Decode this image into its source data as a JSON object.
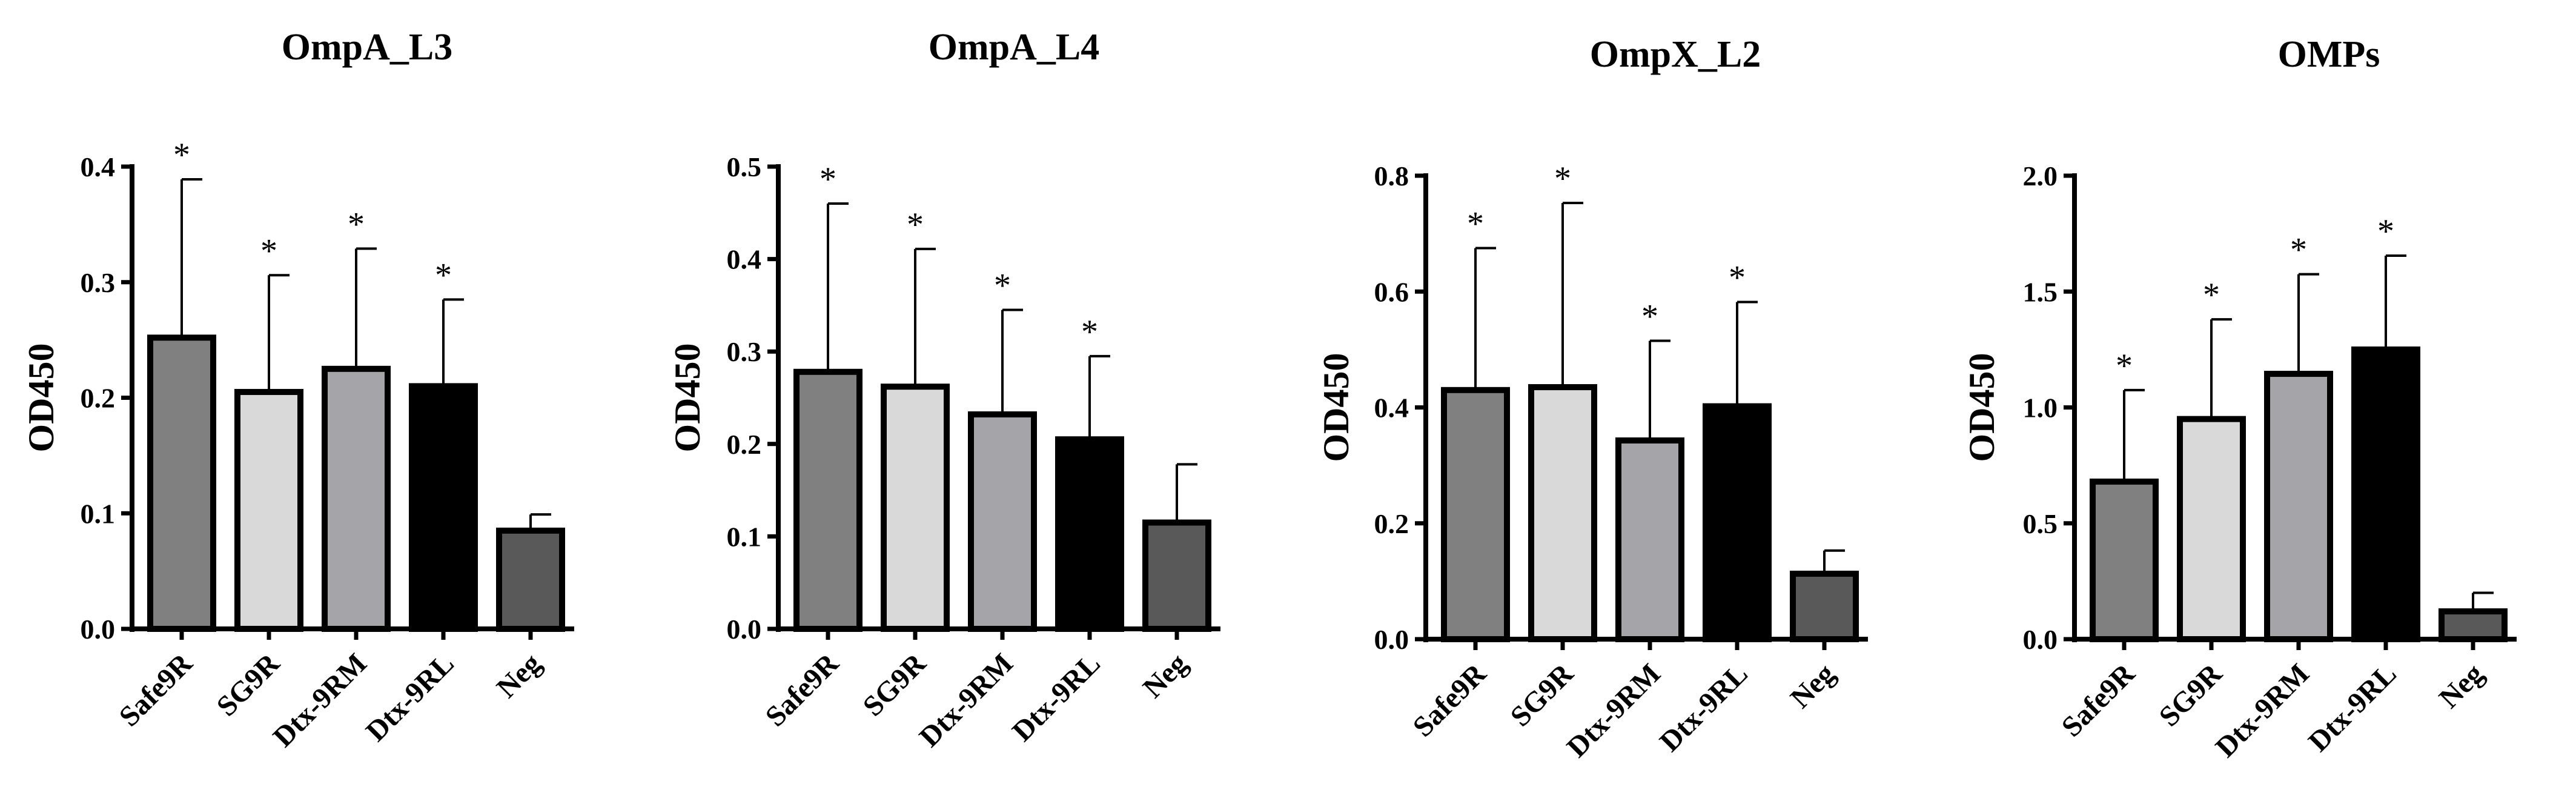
{
  "chart_data": [
    {
      "type": "bar",
      "title": "OmpA_L3",
      "ylabel": "OD450",
      "xlabel": "",
      "ylim": [
        0,
        0.4
      ],
      "yticks": [
        "0.0",
        "0.1",
        "0.2",
        "0.3",
        "0.4"
      ],
      "categories": [
        "Safe9R",
        "SG9R",
        "Dtx-9RM",
        "Dtx-9RL",
        "Neg"
      ],
      "values": [
        0.252,
        0.205,
        0.225,
        0.21,
        0.085
      ],
      "errors": [
        0.137,
        0.101,
        0.104,
        0.075,
        0.014
      ],
      "significance": [
        "*",
        "*",
        "*",
        "*",
        ""
      ],
      "colors": [
        "#808080",
        "#d9d9d9",
        "#a5a5a9",
        "#000000",
        "#595959"
      ]
    },
    {
      "type": "bar",
      "title": "OmpA_L4",
      "ylabel": "OD450",
      "xlabel": "",
      "ylim": [
        0,
        0.5
      ],
      "yticks": [
        "0.0",
        "0.1",
        "0.2",
        "0.3",
        "0.4",
        "0.5"
      ],
      "categories": [
        "Safe9R",
        "SG9R",
        "Dtx-9RM",
        "Dtx-9RL",
        "Neg"
      ],
      "values": [
        0.278,
        0.262,
        0.232,
        0.205,
        0.115
      ],
      "errors": [
        0.182,
        0.149,
        0.113,
        0.09,
        0.063
      ],
      "significance": [
        "*",
        "*",
        "*",
        "*",
        ""
      ],
      "colors": [
        "#808080",
        "#d9d9d9",
        "#a5a5a9",
        "#000000",
        "#595959"
      ]
    },
    {
      "type": "bar",
      "title": "OmpX_L2",
      "ylabel": "OD450",
      "xlabel": "",
      "ylim": [
        0,
        0.8
      ],
      "yticks": [
        "0.0",
        "0.2",
        "0.4",
        "0.6",
        "0.8"
      ],
      "categories": [
        "Safe9R",
        "SG9R",
        "Dtx-9RM",
        "Dtx-9RL",
        "Neg"
      ],
      "values": [
        0.43,
        0.435,
        0.343,
        0.402,
        0.113
      ],
      "errors": [
        0.245,
        0.318,
        0.172,
        0.18,
        0.04
      ],
      "significance": [
        "*",
        "*",
        "*",
        "*",
        ""
      ],
      "colors": [
        "#808080",
        "#d9d9d9",
        "#a5a5a9",
        "#000000",
        "#595959"
      ]
    },
    {
      "type": "bar",
      "title": "OMPs",
      "ylabel": "OD450",
      "xlabel": "",
      "ylim": [
        0,
        2.0
      ],
      "yticks": [
        "0.0",
        "0.5",
        "1.0",
        "1.5",
        "2.0"
      ],
      "categories": [
        "Safe9R",
        "SG9R",
        "Dtx-9RM",
        "Dtx-9RL",
        "Neg"
      ],
      "values": [
        0.68,
        0.95,
        1.145,
        1.25,
        0.12
      ],
      "errors": [
        0.395,
        0.43,
        0.43,
        0.405,
        0.08
      ],
      "significance": [
        "*",
        "*",
        "*",
        "*",
        ""
      ],
      "colors": [
        "#808080",
        "#d9d9d9",
        "#a5a5a9",
        "#000000",
        "#595959"
      ]
    }
  ]
}
